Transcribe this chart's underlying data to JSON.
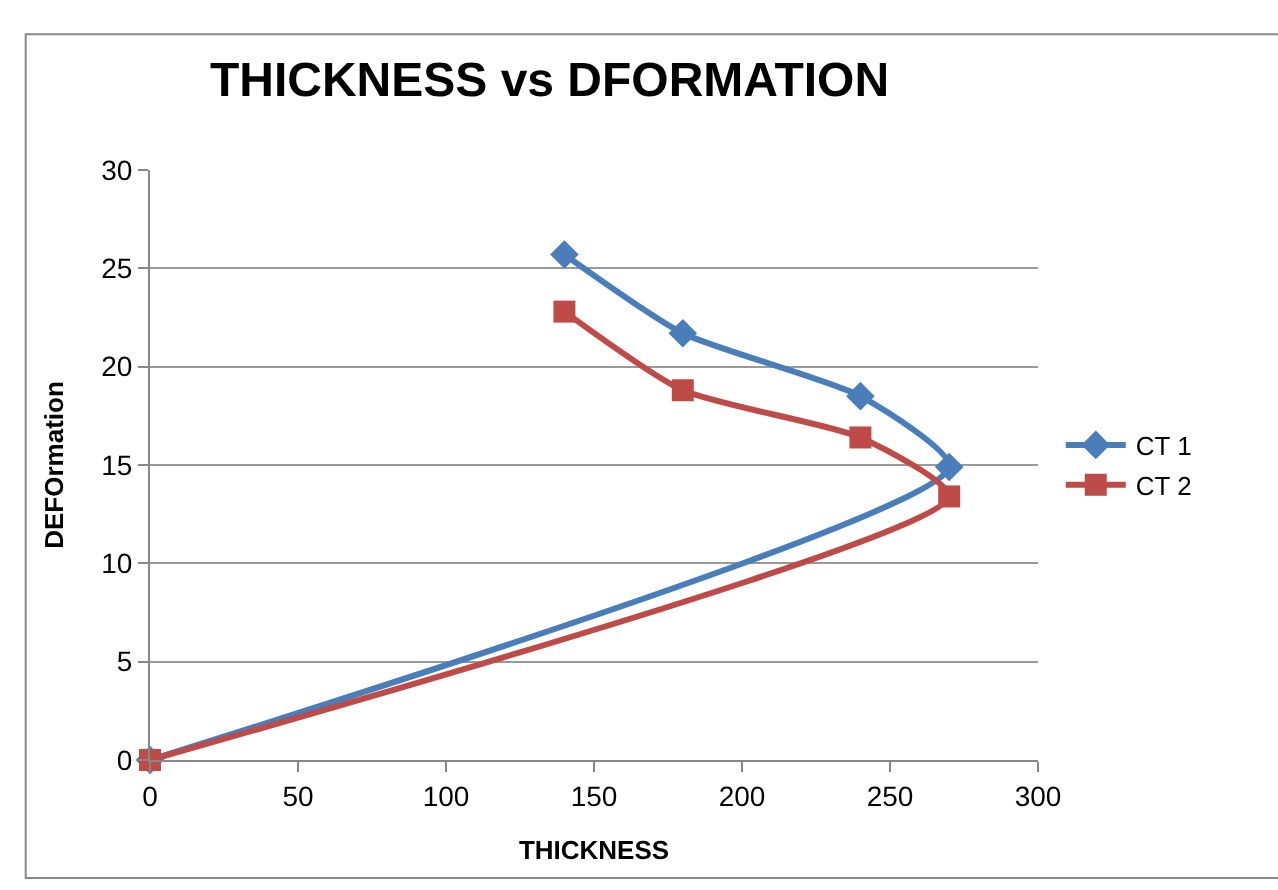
{
  "chart_data": {
    "type": "line",
    "title": "THICKNESS vs DFORMATION",
    "xlabel": "THICKNESS",
    "ylabel": "DEFOrmation",
    "series": [
      {
        "name": "CT 1",
        "color": "#4a7ebb",
        "marker": "diamond",
        "x": [
          0,
          270,
          240,
          180,
          140
        ],
        "values": [
          0,
          14.9,
          18.5,
          21.7,
          25.7
        ]
      },
      {
        "name": "CT 2",
        "color": "#be4b48",
        "marker": "square",
        "x": [
          0,
          270,
          240,
          180,
          140
        ],
        "values": [
          0,
          13.4,
          16.4,
          18.8,
          22.8
        ]
      }
    ],
    "xlim": [
      0,
      300
    ],
    "xticks": [
      0,
      50,
      100,
      150,
      200,
      250,
      300
    ],
    "ylim": [
      0,
      30
    ],
    "yticks": [
      0,
      5,
      10,
      15,
      20,
      25,
      30
    ],
    "grid": "y",
    "legend": "right",
    "line_style": "solid"
  }
}
